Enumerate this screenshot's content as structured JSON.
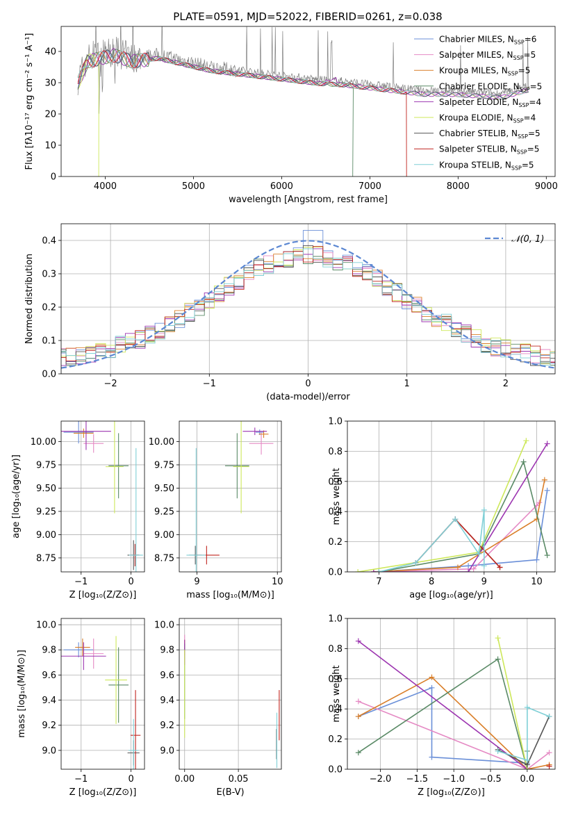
{
  "colors": {
    "Chabrier MILES": "#6a8fd8",
    "Salpeter MILES": "#e58ac4",
    "Kroupa MILES": "#d97e28",
    "Chabrier ELODIE": "#5a8a66",
    "Salpeter ELODIE": "#9c34b0",
    "Kroupa ELODIE": "#cde85a",
    "Chabrier STELIB": "#555555",
    "Salpeter STELIB": "#c0241e",
    "Kroupa STELIB": "#7fcfd6"
  },
  "chart_data": [
    {
      "id": "spectrum",
      "type": "line",
      "title": "PLATE=0591, MJD=52022, FIBERID=0261, z=0.038",
      "xlabel": "wavelength [Angstrom, rest frame]",
      "ylabel": "Flux [fλ10⁻¹⁷ erg cm⁻² s⁻¹ A⁻¹]",
      "xlim": [
        3500,
        9100
      ],
      "ylim": [
        0,
        48
      ],
      "xticks": [
        4000,
        5000,
        6000,
        7000,
        8000,
        9000
      ],
      "yticks": [
        0,
        10,
        20,
        30,
        40
      ],
      "grid": false,
      "legend_position": "top-right",
      "legend": [
        {
          "name": "Chabrier MILES",
          "nssp": "6"
        },
        {
          "name": "Salpeter MILES",
          "nssp": "5"
        },
        {
          "name": "Kroupa MILES",
          "nssp": "5"
        },
        {
          "name": "Chabrier ELODIE",
          "nssp": "5"
        },
        {
          "name": "Salpeter ELODIE",
          "nssp": "4"
        },
        {
          "name": "Kroupa ELODIE",
          "nssp": "4"
        },
        {
          "name": "Chabrier STELIB",
          "nssp": "5"
        },
        {
          "name": "Salpeter STELIB",
          "nssp": "5"
        },
        {
          "name": "Kroupa STELIB",
          "nssp": "5"
        }
      ],
      "data_envelope": {
        "x": [
          3690,
          3800,
          3950,
          4100,
          4300,
          4600,
          4900,
          5200,
          5500,
          5800,
          6100,
          6400,
          6700,
          7000,
          7300,
          7600,
          7900,
          8200,
          8500,
          8810
        ],
        "y": [
          31,
          38,
          39,
          40,
          38,
          39,
          37,
          35,
          34,
          33,
          32,
          31,
          30.5,
          29.5,
          28.5,
          27.5,
          27.5,
          27,
          26.5,
          29
        ]
      },
      "model_cutoffs": [
        {
          "series": "Kroupa ELODIE",
          "x": 3920
        },
        {
          "series": "Chabrier ELODIE",
          "x": 6800
        },
        {
          "series": "Salpeter STELIB",
          "x": 7410
        }
      ]
    },
    {
      "id": "residuals",
      "type": "step",
      "xlabel": "(data-model)/error",
      "ylabel": "Normed distribution",
      "xlim": [
        -2.5,
        2.5
      ],
      "ylim": [
        0,
        0.45
      ],
      "xticks": [
        -2,
        -1,
        0,
        1,
        2
      ],
      "yticks": [
        0.0,
        0.1,
        0.2,
        0.3,
        0.4
      ],
      "grid": true,
      "legend_position": "top-right",
      "reference_curve": {
        "name": "𝒩(0, 1)",
        "mean": 0,
        "sigma": 1
      },
      "bin_width": 0.1
    },
    {
      "id": "age-vs-Z",
      "type": "errorbar",
      "xlabel": "Z [log₁₀(Z/Z⊙)]",
      "ylabel": "age  [log₁₀(age/yr)]",
      "xlim": [
        -1.4,
        0.27
      ],
      "ylim": [
        8.6,
        10.22
      ],
      "xticks": [
        -1,
        0
      ],
      "yticks": [
        8.75,
        9.0,
        9.25,
        9.5,
        9.75,
        10.0
      ],
      "grid": true,
      "points": [
        {
          "series": "Chabrier MILES",
          "x": -1.05,
          "y": 10.1,
          "xerr": 0.3,
          "yerr": 0.12
        },
        {
          "series": "Salpeter MILES",
          "x": -0.75,
          "y": 9.98,
          "xerr": 0.2,
          "yerr": 0.1
        },
        {
          "series": "Kroupa MILES",
          "x": -0.95,
          "y": 10.09,
          "xerr": 0.2,
          "yerr": 0.05
        },
        {
          "series": "Chabrier ELODIE",
          "x": -0.25,
          "y": 9.74,
          "xerr": 0.2,
          "yerr": 0.35
        },
        {
          "series": "Salpeter ELODIE",
          "x": -0.9,
          "y": 10.11,
          "xerr": 0.5,
          "yerr": 0.2
        },
        {
          "series": "Kroupa ELODIE",
          "x": -0.33,
          "y": 9.73,
          "xerr": 0.18,
          "yerr": 0.5
        },
        {
          "series": "Chabrier STELIB",
          "x": 0.05,
          "y": 8.78,
          "xerr": 0.12,
          "yerr": 0.16
        },
        {
          "series": "Salpeter STELIB",
          "x": 0.08,
          "y": 8.78,
          "xerr": 0.08,
          "yerr": 0.12
        },
        {
          "series": "Kroupa STELIB",
          "x": 0.1,
          "y": 8.78,
          "xerr": 0.14,
          "yerr": 1.15
        }
      ]
    },
    {
      "id": "age-vs-mass",
      "type": "errorbar",
      "xlabel": "mass [log₁₀(M/M⊙)]",
      "ylabel": "",
      "xlim": [
        8.78,
        10.05
      ],
      "ylim": [
        8.6,
        10.22
      ],
      "xticks": [
        9,
        10
      ],
      "yticks": [
        8.75,
        9.0,
        9.25,
        9.5,
        9.75,
        10.0
      ],
      "grid": true,
      "points": [
        {
          "series": "Chabrier MILES",
          "x": 9.78,
          "y": 10.1,
          "xerr": 0.05,
          "yerr": 0.03
        },
        {
          "series": "Salpeter MILES",
          "x": 9.8,
          "y": 9.98,
          "xerr": 0.15,
          "yerr": 0.12
        },
        {
          "series": "Kroupa MILES",
          "x": 9.83,
          "y": 10.08,
          "xerr": 0.06,
          "yerr": 0.04
        },
        {
          "series": "Chabrier ELODIE",
          "x": 9.5,
          "y": 9.74,
          "xerr": 0.15,
          "yerr": 0.35
        },
        {
          "series": "Salpeter ELODIE",
          "x": 9.72,
          "y": 10.11,
          "xerr": 0.15,
          "yerr": 0.04
        },
        {
          "series": "Kroupa ELODIE",
          "x": 9.55,
          "y": 9.73,
          "xerr": 0.1,
          "yerr": 0.5
        },
        {
          "series": "Chabrier STELIB",
          "x": 8.98,
          "y": 8.78,
          "xerr": 0.08,
          "yerr": 0.1
        },
        {
          "series": "Salpeter STELIB",
          "x": 9.12,
          "y": 8.78,
          "xerr": 0.16,
          "yerr": 0.1
        },
        {
          "series": "Kroupa STELIB",
          "x": 8.99,
          "y": 8.78,
          "xerr": 0.12,
          "yerr": 1.15
        }
      ]
    },
    {
      "id": "weight-vs-age",
      "type": "line",
      "xlabel": "age  [log₁₀(age/yr)]",
      "ylabel": "mass weight",
      "xlim": [
        6.4,
        10.35
      ],
      "ylim": [
        0,
        1
      ],
      "xticks": [
        7,
        8,
        9,
        10
      ],
      "yticks": [
        0.0,
        0.2,
        0.4,
        0.6,
        0.8,
        1.0
      ],
      "grid": true,
      "series": [
        {
          "name": "Chabrier MILES",
          "x": [
            6.9,
            8.7,
            10.0,
            10.2
          ],
          "y": [
            0.0,
            0.04,
            0.08,
            0.54
          ]
        },
        {
          "name": "Salpeter MILES",
          "x": [
            6.9,
            8.8,
            10.0,
            10.05
          ],
          "y": [
            0.0,
            0.02,
            0.44,
            0.46
          ]
        },
        {
          "name": "Kroupa MILES",
          "x": [
            6.9,
            8.5,
            10.0,
            10.15
          ],
          "y": [
            0.0,
            0.03,
            0.35,
            0.61
          ]
        },
        {
          "name": "Chabrier ELODIE",
          "x": [
            7.0,
            8.9,
            9.75,
            10.2
          ],
          "y": [
            0.0,
            0.12,
            0.73,
            0.11
          ]
        },
        {
          "name": "Salpeter ELODIE",
          "x": [
            6.9,
            8.7,
            10.2
          ],
          "y": [
            0.0,
            0.0,
            0.85
          ]
        },
        {
          "name": "Kroupa ELODIE",
          "x": [
            6.6,
            8.9,
            9.8
          ],
          "y": [
            0.0,
            0.13,
            0.87
          ]
        },
        {
          "name": "Chabrier STELIB",
          "x": [
            7.7,
            8.45,
            9.3
          ],
          "y": [
            0.06,
            0.35,
            0.03
          ]
        },
        {
          "name": "Salpeter STELIB",
          "x": [
            7.7,
            8.45,
            9.3
          ],
          "y": [
            0.06,
            0.35,
            0.03
          ]
        },
        {
          "name": "Kroupa STELIB",
          "x": [
            7.0,
            7.7,
            8.45,
            8.9,
            9.0,
            9.0
          ],
          "y": [
            0.0,
            0.06,
            0.35,
            0.12,
            0.41,
            0.04
          ]
        }
      ]
    },
    {
      "id": "mass-vs-Z",
      "type": "errorbar",
      "xlabel": "Z [log₁₀(Z/Z⊙)]",
      "ylabel": "mass [log₁₀(M/M⊙)]",
      "xlim": [
        -1.4,
        0.27
      ],
      "ylim": [
        8.85,
        10.05
      ],
      "xticks": [
        -1,
        0
      ],
      "yticks": [
        9.0,
        9.2,
        9.4,
        9.6,
        9.8,
        10.0
      ],
      "grid": true,
      "points": [
        {
          "series": "Chabrier MILES",
          "x": -1.05,
          "y": 9.8,
          "xerr": 0.3,
          "yerr": 0.06
        },
        {
          "series": "Salpeter MILES",
          "x": -0.75,
          "y": 9.77,
          "xerr": 0.2,
          "yerr": 0.12
        },
        {
          "series": "Kroupa MILES",
          "x": -0.97,
          "y": 9.82,
          "xerr": 0.15,
          "yerr": 0.07
        },
        {
          "series": "Chabrier ELODIE",
          "x": -0.25,
          "y": 9.52,
          "xerr": 0.2,
          "yerr": 0.3
        },
        {
          "series": "Salpeter ELODIE",
          "x": -0.95,
          "y": 9.75,
          "xerr": 0.45,
          "yerr": 0.11
        },
        {
          "series": "Kroupa ELODIE",
          "x": -0.3,
          "y": 9.56,
          "xerr": 0.22,
          "yerr": 0.35
        },
        {
          "series": "Chabrier STELIB",
          "x": 0.05,
          "y": 8.98,
          "xerr": 0.12,
          "yerr": 0.1
        },
        {
          "series": "Salpeter STELIB",
          "x": 0.09,
          "y": 9.12,
          "xerr": 0.1,
          "yerr": 0.36
        },
        {
          "series": "Kroupa STELIB",
          "x": 0.05,
          "y": 9.0,
          "xerr": 0.1,
          "yerr": 0.25
        }
      ]
    },
    {
      "id": "mass-vs-ebv",
      "type": "errorbar",
      "xlabel": "E(B-V)",
      "ylabel": "",
      "xlim": [
        -0.005,
        0.09
      ],
      "ylim": [
        8.85,
        10.05
      ],
      "xticks": [
        0.0,
        0.05
      ],
      "yticks": [
        9.0,
        9.2,
        9.4,
        9.6,
        9.8,
        10.0
      ],
      "grid": true,
      "points": [
        {
          "series": "Chabrier MILES",
          "x": 0.0,
          "y": 9.8,
          "xerr": 0.0,
          "yerr": 0.05
        },
        {
          "series": "Salpeter MILES",
          "x": 0.0,
          "y": 9.82,
          "xerr": 0.0,
          "yerr": 0.1
        },
        {
          "series": "Kroupa MILES",
          "x": 0.0,
          "y": 9.82,
          "xerr": 0.0,
          "yerr": 0.06
        },
        {
          "series": "Chabrier ELODIE",
          "x": 0.0,
          "y": 9.55,
          "xerr": 0.0,
          "yerr": 0.3
        },
        {
          "series": "Salpeter ELODIE",
          "x": 0.0,
          "y": 9.78,
          "xerr": 0.0,
          "yerr": 0.1
        },
        {
          "series": "Kroupa ELODIE",
          "x": 0.0,
          "y": 9.45,
          "xerr": 0.0,
          "yerr": 0.35
        },
        {
          "series": "Chabrier STELIB",
          "x": 0.0855,
          "y": 9.05,
          "xerr": 0.0,
          "yerr": 0.12
        },
        {
          "series": "Salpeter STELIB",
          "x": 0.088,
          "y": 9.28,
          "xerr": 0.0,
          "yerr": 0.2
        },
        {
          "series": "Kroupa STELIB",
          "x": 0.0858,
          "y": 9.08,
          "xerr": 0.0,
          "yerr": 0.22
        }
      ]
    },
    {
      "id": "weight-vs-Z",
      "type": "line",
      "xlabel": "Z [log₁₀(Z/Z⊙)]",
      "ylabel": "mass weight",
      "xlim": [
        -2.45,
        0.38
      ],
      "ylim": [
        0,
        1
      ],
      "xticks": [
        -2.0,
        -1.5,
        -1.0,
        -0.5,
        0.0
      ],
      "yticks": [
        0.0,
        0.2,
        0.4,
        0.6,
        0.8,
        1.0
      ],
      "grid": true,
      "series": [
        {
          "name": "Chabrier MILES",
          "x": [
            -2.3,
            -1.3,
            -1.3,
            0.0
          ],
          "y": [
            0.35,
            0.54,
            0.08,
            0.04
          ]
        },
        {
          "name": "Salpeter MILES",
          "x": [
            -2.3,
            0.0,
            0.3
          ],
          "y": [
            0.45,
            0.0,
            0.11
          ]
        },
        {
          "name": "Kroupa MILES",
          "x": [
            -2.3,
            -1.3,
            0.0,
            0.3
          ],
          "y": [
            0.35,
            0.61,
            0.0,
            0.03
          ]
        },
        {
          "name": "Chabrier ELODIE",
          "x": [
            -2.3,
            -0.4,
            0.0,
            0.0
          ],
          "y": [
            0.11,
            0.73,
            0.0,
            0.12
          ]
        },
        {
          "name": "Salpeter ELODIE",
          "x": [
            -2.3,
            0.0
          ],
          "y": [
            0.85,
            0.0
          ]
        },
        {
          "name": "Kroupa ELODIE",
          "x": [
            -0.4,
            0.0
          ],
          "y": [
            0.87,
            0.0
          ]
        },
        {
          "name": "Chabrier STELIB",
          "x": [
            -0.4,
            0.0,
            0.3
          ],
          "y": [
            0.13,
            0.03,
            0.35
          ]
        },
        {
          "name": "Salpeter STELIB",
          "x": [
            0.3
          ],
          "y": [
            0.02
          ]
        },
        {
          "name": "Kroupa STELIB",
          "x": [
            -0.4,
            0.0,
            0.0,
            0.3
          ],
          "y": [
            0.12,
            0.06,
            0.41,
            0.35
          ]
        }
      ]
    }
  ]
}
